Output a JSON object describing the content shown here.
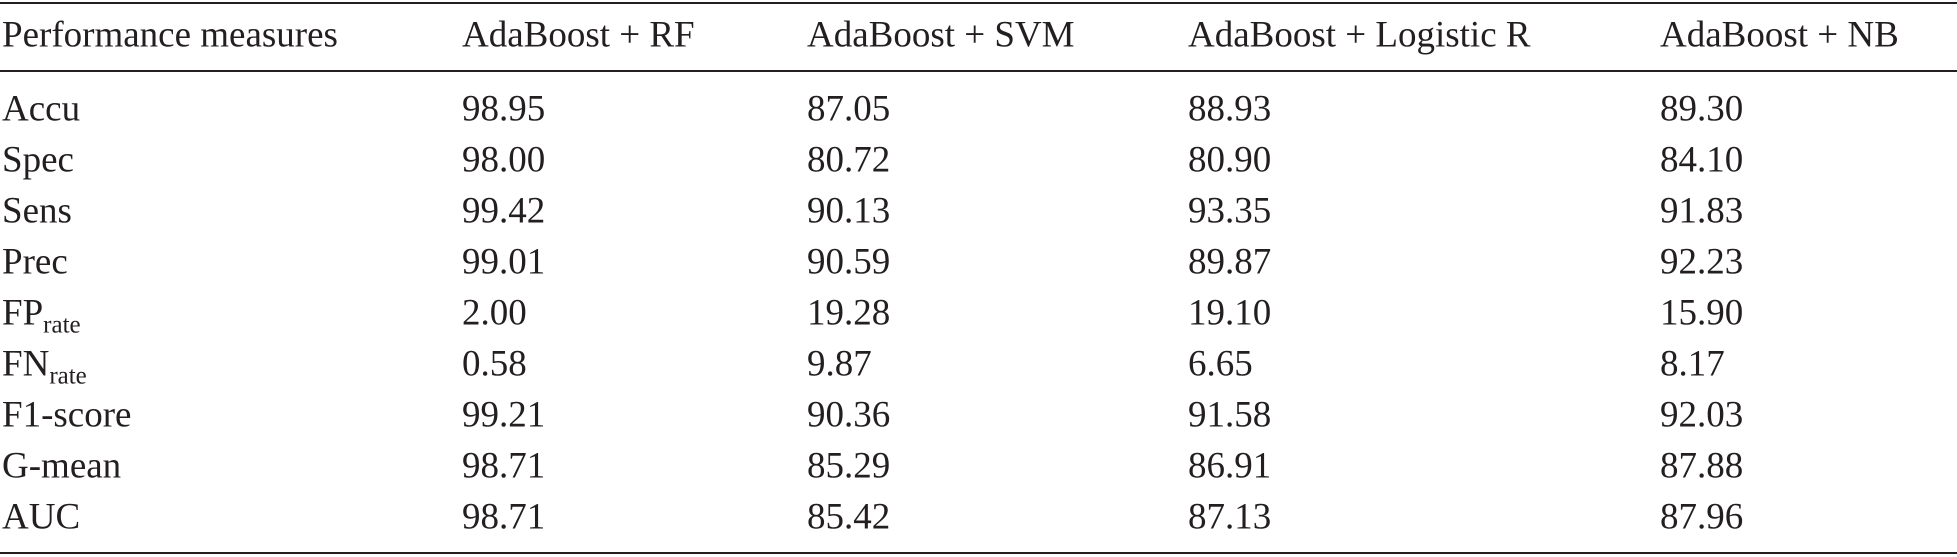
{
  "table": {
    "header": [
      "Performance measures",
      "AdaBoost + RF",
      "AdaBoost + SVM",
      "AdaBoost + Logistic R",
      "AdaBoost + NB"
    ],
    "rows": [
      [
        "Accu",
        "98.95",
        "87.05",
        "88.93",
        "89.30"
      ],
      [
        "Spec",
        "98.00",
        "80.72",
        "80.90",
        "84.10"
      ],
      [
        "Sens",
        "99.42",
        "90.13",
        "93.35",
        "91.83"
      ],
      [
        "Prec",
        "99.01",
        "90.59",
        "89.87",
        "92.23"
      ],
      [
        {
          "main": "FP",
          "sub": "rate"
        },
        "2.00",
        "19.28",
        "19.10",
        "15.90"
      ],
      [
        {
          "main": "FN",
          "sub": "rate"
        },
        "0.58",
        "9.87",
        "6.65",
        "8.17"
      ],
      [
        "F1-score",
        "99.21",
        "90.36",
        "91.58",
        "92.03"
      ],
      [
        "G-mean",
        "98.71",
        "85.29",
        "86.91",
        "87.88"
      ],
      [
        "AUC",
        "98.71",
        "85.42",
        "87.13",
        "87.96"
      ]
    ]
  }
}
